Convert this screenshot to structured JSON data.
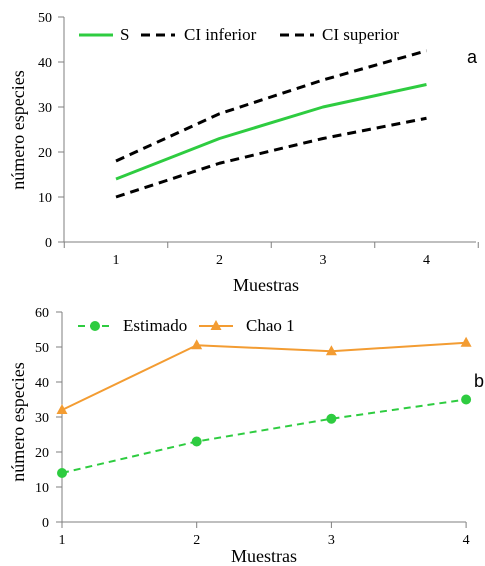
{
  "chart_data": [
    {
      "type": "line",
      "panel_letter": "a",
      "xlabel": "Muestras",
      "ylabel": "número especies",
      "x": [
        1,
        2,
        3,
        4
      ],
      "xticks": [
        "1",
        "2",
        "3",
        "4"
      ],
      "ylim": [
        0,
        50
      ],
      "yticks": [
        "0",
        "10",
        "20",
        "30",
        "40",
        "50"
      ],
      "legend_position": "top",
      "grid": false,
      "series": [
        {
          "name": "S",
          "values": [
            14,
            23,
            30,
            35
          ],
          "color": "#2ecc40",
          "style": "solid"
        },
        {
          "name": "CI inferior",
          "values": [
            10,
            17.5,
            23,
            27.5
          ],
          "color": "#000000",
          "style": "dashed"
        },
        {
          "name": "CI superior",
          "values": [
            18,
            28.5,
            36,
            42.5
          ],
          "color": "#000000",
          "style": "dashed"
        }
      ]
    },
    {
      "type": "line",
      "panel_letter": "b",
      "xlabel": "Muestras",
      "ylabel": "número especies",
      "x": [
        1,
        2,
        3,
        4
      ],
      "xticks": [
        "1",
        "2",
        "3",
        "4"
      ],
      "ylim": [
        0,
        60
      ],
      "yticks": [
        "0",
        "10",
        "20",
        "30",
        "40",
        "50",
        "60"
      ],
      "legend_position": "top",
      "grid": false,
      "series": [
        {
          "name": "Estimado",
          "values": [
            14,
            23,
            29.5,
            35
          ],
          "color": "#2ecc40",
          "style": "dashed",
          "marker": "circle"
        },
        {
          "name": "Chao 1",
          "values": [
            32,
            50.5,
            48.8,
            51.2
          ],
          "color": "#f39c32",
          "style": "solid",
          "marker": "triangle"
        }
      ]
    }
  ]
}
